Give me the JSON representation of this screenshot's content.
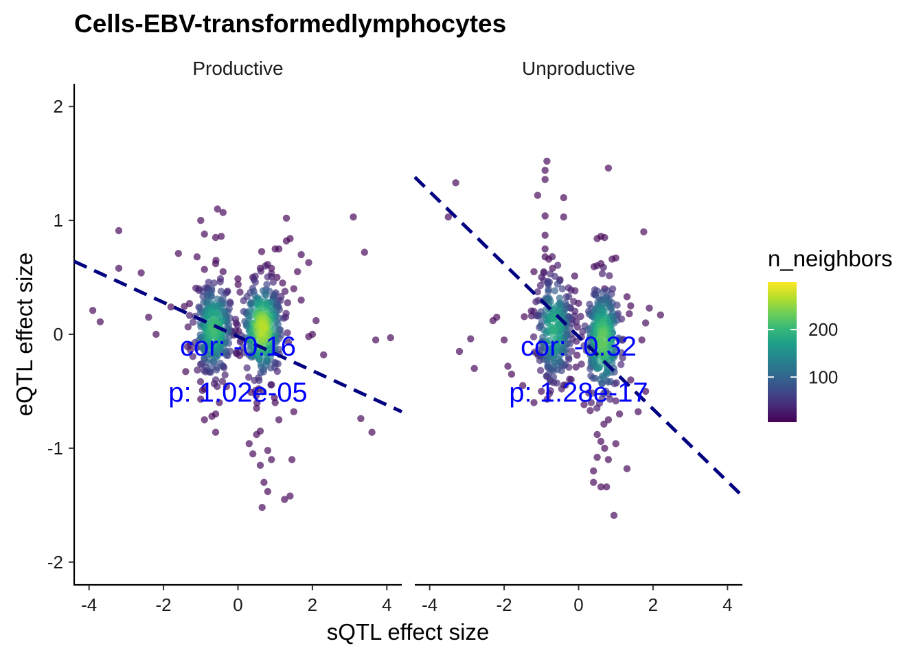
{
  "chart_data": {
    "type": "scatter",
    "title": "Cells-EBV-transformedlymphocytes",
    "xlabel": "sQTL effect size",
    "ylabel": "eQTL effect size",
    "xlim": [
      -4.4,
      4.4
    ],
    "ylim": [
      -2.2,
      2.2
    ],
    "x_ticks": [
      -4,
      -2,
      0,
      2,
      4
    ],
    "y_ticks": [
      -2,
      -1,
      0,
      1,
      2
    ],
    "colors": {
      "viridis": [
        "#440154",
        "#482878",
        "#3e4989",
        "#31688e",
        "#26828e",
        "#1f9e89",
        "#35b779",
        "#6ece58",
        "#b5de2b",
        "#fde725"
      ],
      "annotation": "#0000ff",
      "fit_line": "#000080"
    },
    "legend": {
      "title": "n_neighbors",
      "position": "right",
      "range": [
        5,
        300
      ],
      "ticks": [
        100,
        200
      ]
    },
    "facets": [
      {
        "label": "Productive",
        "cor_label": "cor: -0.16",
        "p_label": "p: 1.02e-05",
        "fit_line": {
          "x": [
            -4.4,
            4.4
          ],
          "y": [
            0.64,
            -0.68
          ]
        },
        "clusters": [
          {
            "cx": -0.65,
            "cy": 0.05,
            "sx": 0.28,
            "sy": 0.22,
            "n": 260,
            "n_peak": 210,
            "seed": 11
          },
          {
            "cx": 0.65,
            "cy": 0.05,
            "sx": 0.28,
            "sy": 0.22,
            "n": 300,
            "n_peak": 270,
            "seed": 23
          }
        ],
        "outliers": [
          [
            -3.9,
            0.21
          ],
          [
            -3.7,
            0.11
          ],
          [
            -3.2,
            0.91
          ],
          [
            -3.2,
            0.58
          ],
          [
            -2.6,
            0.54
          ],
          [
            -2.2,
            0.0
          ],
          [
            -1.8,
            0.24
          ],
          [
            -1.6,
            0.71
          ],
          [
            -1.3,
            0.27
          ],
          [
            -1.1,
            0.68
          ],
          [
            -1.0,
            1.0
          ],
          [
            -0.9,
            0.88
          ],
          [
            -0.6,
            0.85
          ],
          [
            -0.55,
            1.1
          ],
          [
            -0.45,
            0.86
          ],
          [
            -0.4,
            1.07
          ],
          [
            -0.9,
            0.57
          ],
          [
            -0.6,
            0.62
          ],
          [
            -0.4,
            0.55
          ],
          [
            -0.8,
            0.4
          ],
          [
            -1.0,
            -0.57
          ],
          [
            -0.9,
            -0.75
          ],
          [
            -0.6,
            -0.86
          ],
          [
            -0.6,
            -0.7
          ],
          [
            -0.5,
            -0.6
          ],
          [
            -0.7,
            -0.72
          ],
          [
            -0.9,
            -0.48
          ],
          [
            0.3,
            -0.96
          ],
          [
            0.4,
            -1.05
          ],
          [
            0.5,
            -0.88
          ],
          [
            0.6,
            -0.85
          ],
          [
            0.6,
            -1.15
          ],
          [
            0.7,
            -1.3
          ],
          [
            0.8,
            -1.02
          ],
          [
            0.9,
            -1.1
          ],
          [
            0.8,
            -1.38
          ],
          [
            0.65,
            -1.52
          ],
          [
            1.25,
            -1.45
          ],
          [
            1.4,
            -1.42
          ],
          [
            1.45,
            -1.1
          ],
          [
            1.1,
            -0.75
          ],
          [
            1.5,
            -0.68
          ],
          [
            1.0,
            -0.6
          ],
          [
            0.5,
            -0.65
          ],
          [
            0.4,
            0.5
          ],
          [
            0.6,
            0.58
          ],
          [
            0.9,
            0.58
          ],
          [
            1.05,
            0.5
          ],
          [
            1.2,
            0.45
          ],
          [
            1.1,
            0.75
          ],
          [
            1.0,
            0.75
          ],
          [
            1.3,
            0.82
          ],
          [
            1.4,
            0.84
          ],
          [
            1.3,
            1.02
          ],
          [
            1.7,
            0.7
          ],
          [
            1.9,
            0.63
          ],
          [
            1.6,
            0.55
          ],
          [
            1.7,
            0.3
          ],
          [
            2.1,
            0.12
          ],
          [
            1.9,
            -0.02
          ],
          [
            2.0,
            0.0
          ],
          [
            2.3,
            -0.18
          ],
          [
            3.1,
            1.03
          ],
          [
            3.4,
            0.72
          ],
          [
            3.7,
            -0.05
          ],
          [
            4.1,
            -0.03
          ],
          [
            3.3,
            -0.74
          ],
          [
            3.6,
            -0.86
          ],
          [
            -2.4,
            0.15
          ],
          [
            1.5,
            0.4
          ]
        ]
      },
      {
        "label": "Unproductive",
        "cor_label": "cor: -0.32",
        "p_label": "p: 1.28e-17",
        "fit_line": {
          "x": [
            -4.4,
            4.4
          ],
          "y": [
            1.38,
            -1.42
          ]
        },
        "clusters": [
          {
            "cx": -0.65,
            "cy": 0.05,
            "sx": 0.26,
            "sy": 0.26,
            "n": 240,
            "n_peak": 190,
            "seed": 37
          },
          {
            "cx": 0.65,
            "cy": -0.05,
            "sx": 0.26,
            "sy": 0.26,
            "n": 270,
            "n_peak": 230,
            "seed": 53
          }
        ],
        "outliers": [
          [
            -3.3,
            1.33
          ],
          [
            -3.5,
            1.03
          ],
          [
            -3.2,
            -0.15
          ],
          [
            -2.9,
            -0.04
          ],
          [
            -2.8,
            -0.3
          ],
          [
            -2.2,
            0.15
          ],
          [
            -2.3,
            0.12
          ],
          [
            -2.0,
            -0.05
          ],
          [
            -1.9,
            -0.28
          ],
          [
            -1.8,
            -0.35
          ],
          [
            -1.5,
            -0.45
          ],
          [
            -1.2,
            -0.6
          ],
          [
            -0.85,
            1.52
          ],
          [
            -0.9,
            1.44
          ],
          [
            -0.9,
            1.36
          ],
          [
            -1.1,
            1.22
          ],
          [
            -0.4,
            1.2
          ],
          [
            -0.9,
            1.04
          ],
          [
            -0.4,
            1.03
          ],
          [
            -0.9,
            0.87
          ],
          [
            -0.9,
            0.75
          ],
          [
            -0.8,
            0.66
          ],
          [
            -0.9,
            0.68
          ],
          [
            -0.7,
            0.58
          ],
          [
            -0.5,
            0.48
          ],
          [
            -1.2,
            0.55
          ],
          [
            0.8,
            1.46
          ],
          [
            0.9,
            0.66
          ],
          [
            1.0,
            0.67
          ],
          [
            1.75,
            0.9
          ],
          [
            0.5,
            0.84
          ],
          [
            0.6,
            0.86
          ],
          [
            0.7,
            0.85
          ],
          [
            0.6,
            0.62
          ],
          [
            0.7,
            0.4
          ],
          [
            0.6,
            0.3
          ],
          [
            1.3,
            0.33
          ],
          [
            1.4,
            0.25
          ],
          [
            1.9,
            0.23
          ],
          [
            2.2,
            0.17
          ],
          [
            1.8,
            0.1
          ],
          [
            1.7,
            -0.05
          ],
          [
            1.4,
            -0.4
          ],
          [
            1.6,
            -0.68
          ],
          [
            1.8,
            -0.5
          ],
          [
            0.5,
            -0.88
          ],
          [
            0.6,
            -0.94
          ],
          [
            0.5,
            -1.08
          ],
          [
            0.7,
            -1.0
          ],
          [
            0.8,
            -1.1
          ],
          [
            1.0,
            -0.96
          ],
          [
            0.4,
            -1.2
          ],
          [
            0.6,
            -1.34
          ],
          [
            0.75,
            -1.34
          ],
          [
            0.4,
            -1.3
          ],
          [
            0.95,
            -1.59
          ],
          [
            1.3,
            -1.18
          ],
          [
            1.1,
            -0.7
          ],
          [
            0.8,
            -0.75
          ],
          [
            -1.0,
            -0.5
          ]
        ]
      }
    ]
  }
}
